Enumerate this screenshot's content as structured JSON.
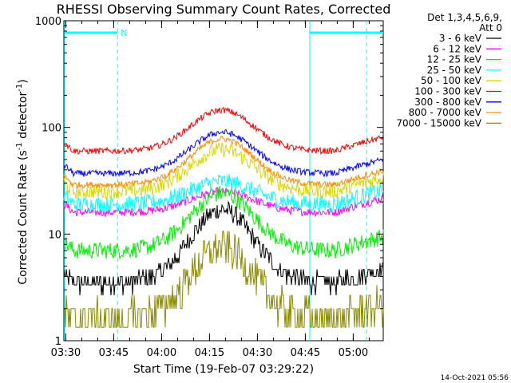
{
  "chart_data": {
    "type": "line",
    "title": "RHESSI Observing Summary Count Rates, Corrected",
    "xlabel": "Start Time (19-Feb-07 03:29:22)",
    "ylabel_main": "Corrected Count Rate (s",
    "ylabel_sup1": "-1",
    "ylabel_mid": " detector",
    "ylabel_sup2": "-1",
    "ylabel_end": ")",
    "yscale": "log",
    "ylim": [
      1,
      1000
    ],
    "xlim_minutes": [
      0,
      100
    ],
    "x_ticks": [
      {
        "label": "03:30",
        "minute": 0.6
      },
      {
        "label": "03:45",
        "minute": 15.6
      },
      {
        "label": "04:00",
        "minute": 30.6
      },
      {
        "label": "04:15",
        "minute": 45.6
      },
      {
        "label": "04:30",
        "minute": 60.6
      },
      {
        "label": "04:45",
        "minute": 75.6
      },
      {
        "label": "05:00",
        "minute": 90.6
      }
    ],
    "y_ticks": [
      {
        "label": "1",
        "value": 1
      },
      {
        "label": "10",
        "value": 10
      },
      {
        "label": "100",
        "value": 100
      },
      {
        "label": "1000",
        "value": 1000
      }
    ],
    "legend_header": [
      "Det 1,3,4,5,6,9,",
      "Att 0"
    ],
    "night_markers_minutes": [
      0.2,
      16.8,
      77.0,
      94.8
    ],
    "night_bars": [
      {
        "start": 0.2,
        "end": 16.8,
        "label": "N"
      },
      {
        "start": 77.0,
        "end": 100
      }
    ],
    "series": [
      {
        "name": "3 - 6 keV",
        "color": "#000000",
        "low": 3.5,
        "high": 17,
        "noise": 0.09,
        "offset": 0,
        "quantized": true
      },
      {
        "name": "6 - 12 keV",
        "color": "#ff00ff",
        "low": 16,
        "high": 25,
        "noise": 0.04,
        "offset": 0,
        "quantized": false
      },
      {
        "name": "12 - 25 keV",
        "color": "#00ee00",
        "low": 7,
        "high": 24,
        "noise": 0.08,
        "offset": 0,
        "quantized": false
      },
      {
        "name": "25 - 50 keV",
        "color": "#00ffff",
        "low": 19,
        "high": 31,
        "noise": 0.08,
        "offset": 0,
        "quantized": false
      },
      {
        "name": "50 - 100 keV",
        "color": "#d8d800",
        "low": 25,
        "high": 62,
        "noise": 0.07,
        "offset": 0,
        "quantized": false
      },
      {
        "name": "100 - 300 keV",
        "color": "#ff0000",
        "low": 60,
        "high": 145,
        "noise": 0.03,
        "offset": 0,
        "quantized": false
      },
      {
        "name": "300 - 800 keV",
        "color": "#0000ff",
        "low": 37,
        "high": 90,
        "noise": 0.03,
        "offset": 0,
        "quantized": false
      },
      {
        "name": "800 - 7000 keV",
        "color": "#ff8c00",
        "low": 29,
        "high": 78,
        "noise": 0.03,
        "offset": 0,
        "quantized": false
      },
      {
        "name": "7000 - 15000 keV",
        "color": "#8b8b00",
        "low": 1.6,
        "high": 7.5,
        "noise": 0.17,
        "offset": 0,
        "quantized": true
      }
    ],
    "footer_date": "14-Oct-2021 05:56"
  }
}
